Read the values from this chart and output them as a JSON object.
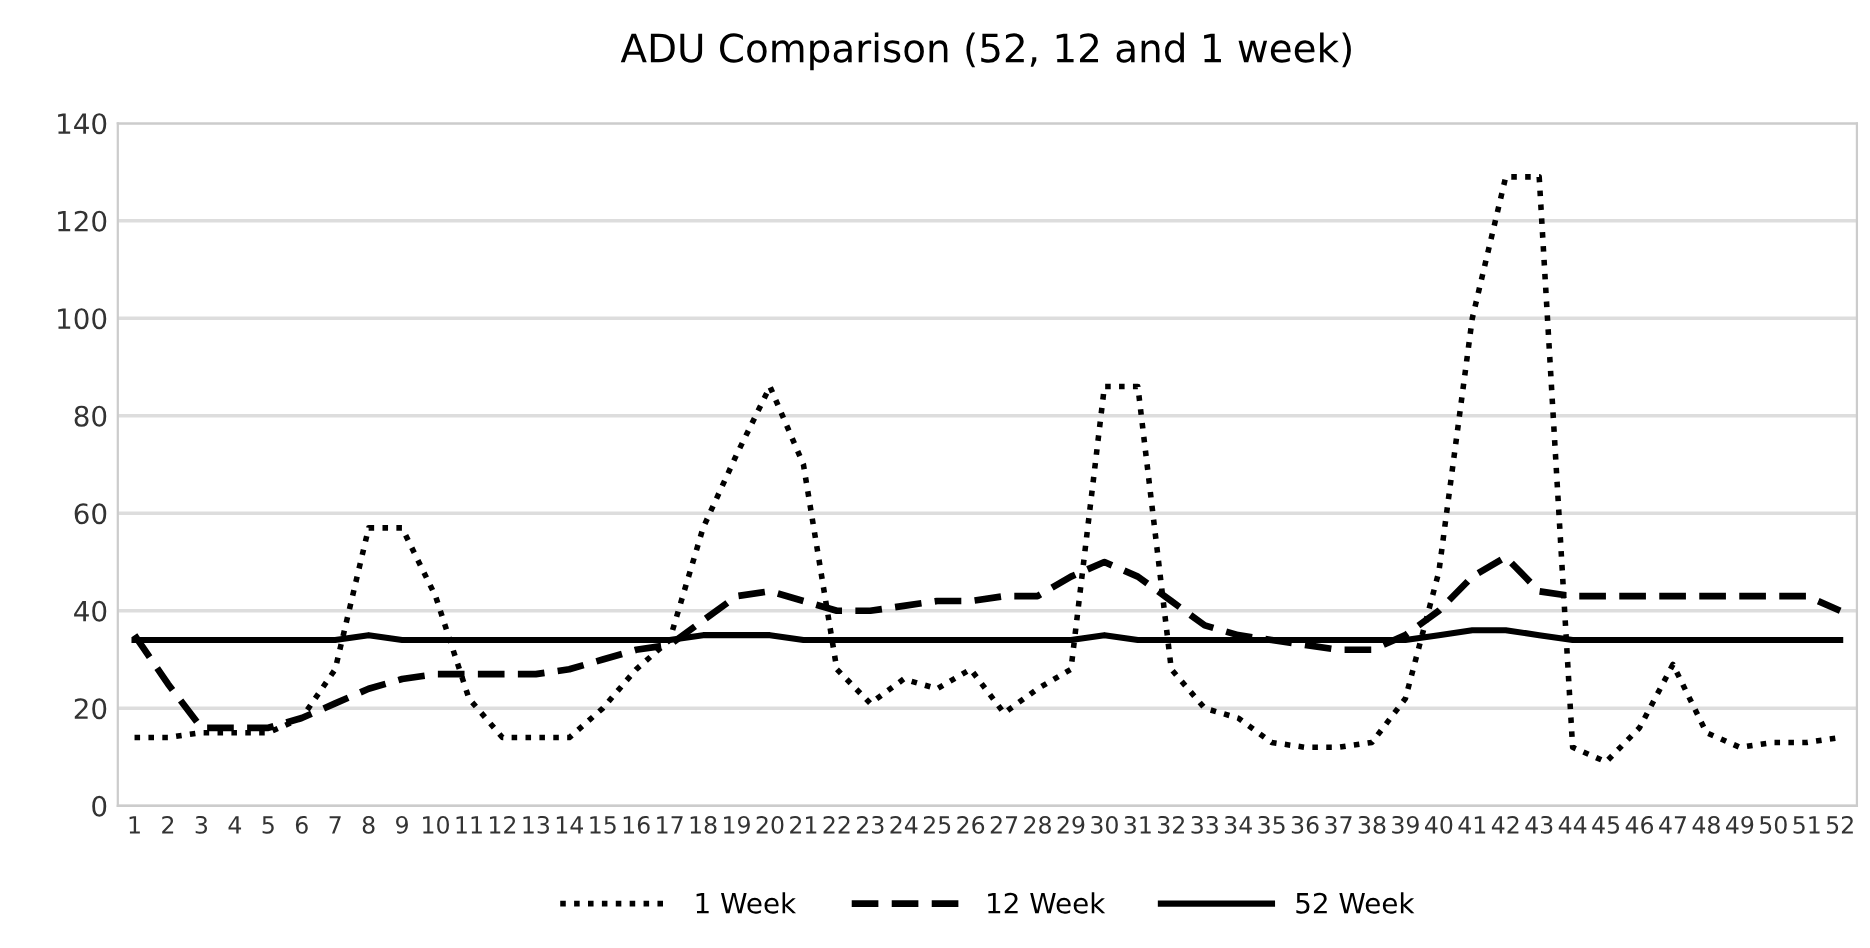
{
  "chart_data": {
    "type": "line",
    "title": "ADU Comparison (52, 12 and 1 week)",
    "categories": [
      "1",
      "2",
      "3",
      "4",
      "5",
      "6",
      "7",
      "8",
      "9",
      "10",
      "11",
      "12",
      "13",
      "14",
      "15",
      "16",
      "17",
      "18",
      "19",
      "20",
      "21",
      "22",
      "23",
      "24",
      "25",
      "26",
      "27",
      "28",
      "29",
      "30",
      "31",
      "32",
      "33",
      "34",
      "35",
      "36",
      "37",
      "38",
      "39",
      "40",
      "41",
      "42",
      "43",
      "44",
      "45",
      "46",
      "47",
      "48",
      "49",
      "50",
      "51",
      "52"
    ],
    "series": [
      {
        "name": "1 Week",
        "color": "#000000",
        "line_style": "dotted",
        "values": [
          14,
          14,
          15,
          15,
          15,
          18,
          28,
          57,
          57,
          43,
          22,
          14,
          14,
          14,
          20,
          28,
          34,
          57,
          72,
          86,
          70,
          28,
          21,
          26,
          24,
          28,
          19,
          24,
          28,
          86,
          86,
          28,
          20,
          18,
          13,
          12,
          12,
          13,
          22,
          48,
          100,
          129,
          129,
          12,
          9,
          16,
          29,
          15,
          12,
          13,
          13,
          14
        ]
      },
      {
        "name": "12 Week",
        "color": "#000000",
        "line_style": "dashed",
        "values": [
          35,
          25,
          16,
          16,
          16,
          18,
          21,
          24,
          26,
          27,
          27,
          27,
          27,
          28,
          30,
          32,
          33,
          38,
          43,
          44,
          42,
          40,
          40,
          41,
          42,
          42,
          43,
          43,
          47,
          50,
          47,
          42,
          37,
          35,
          34,
          33,
          32,
          32,
          35,
          40,
          47,
          51,
          44,
          43,
          43,
          43,
          43,
          43,
          43,
          43,
          43,
          40
        ]
      },
      {
        "name": "52 Week",
        "color": "#000000",
        "line_style": "solid",
        "values": [
          34,
          34,
          34,
          34,
          34,
          34,
          34,
          35,
          34,
          34,
          34,
          34,
          34,
          34,
          34,
          34,
          34,
          35,
          35,
          35,
          34,
          34,
          34,
          34,
          34,
          34,
          34,
          34,
          34,
          35,
          34,
          34,
          34,
          34,
          34,
          34,
          34,
          34,
          34,
          35,
          36,
          36,
          35,
          34,
          34,
          34,
          34,
          34,
          34,
          34,
          34,
          34
        ]
      }
    ],
    "ylim": [
      0,
      140
    ],
    "yticks": [
      0,
      20,
      40,
      60,
      80,
      100,
      120,
      140
    ],
    "grid": "y",
    "legend": "bottom",
    "marker": "none"
  }
}
